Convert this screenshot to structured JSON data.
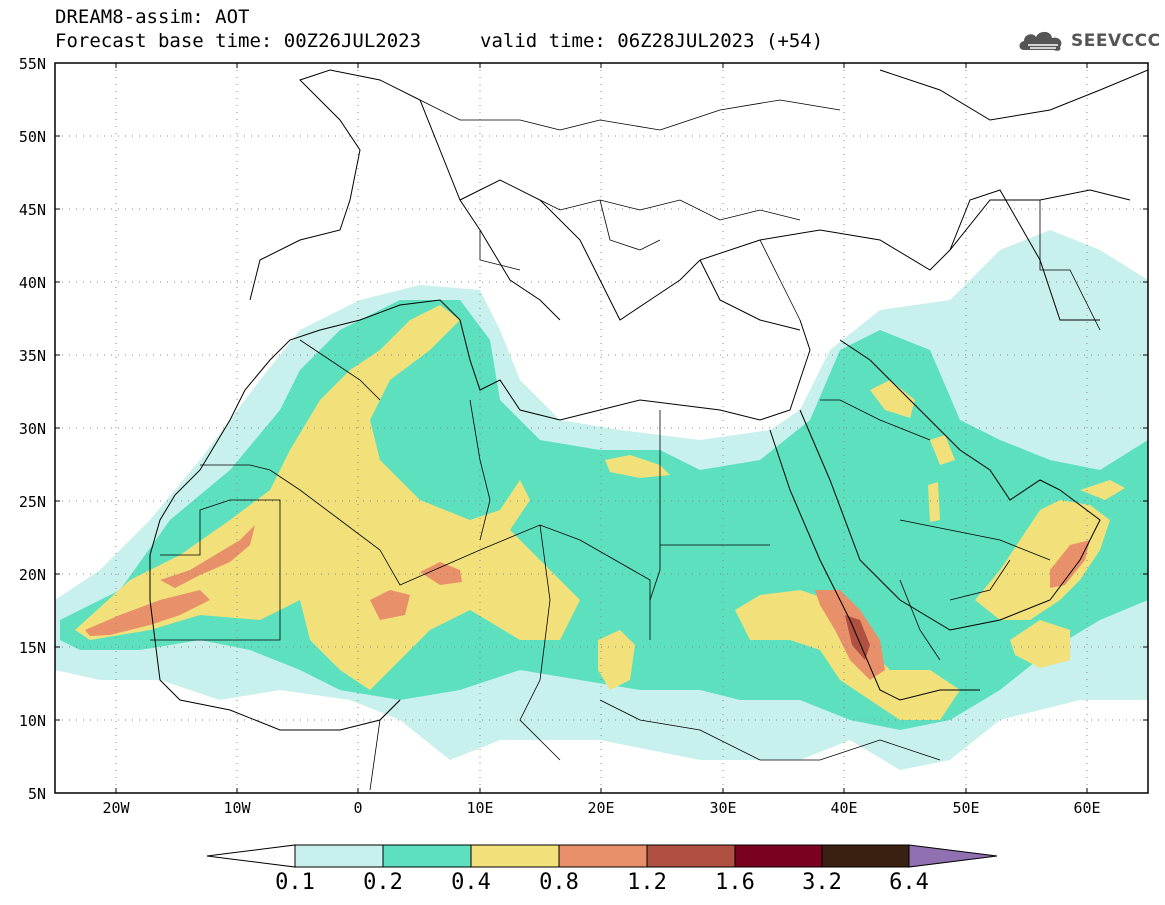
{
  "header": {
    "title_line1": "DREAM8-assim: AOT",
    "title_line2_base": "Forecast base time: 00Z26JUL2023",
    "title_line2_valid": "valid time: 06Z28JUL2023 (+54)",
    "logo_text": "SEEVCCC",
    "logo_icon": "cloud-icon"
  },
  "map": {
    "lon_range": [
      -25,
      65
    ],
    "lat_range": [
      5,
      55
    ],
    "grid": true,
    "lat_labels": [
      "55N",
      "50N",
      "45N",
      "40N",
      "35N",
      "30N",
      "25N",
      "20N",
      "15N",
      "10N",
      "5N"
    ],
    "lon_labels": [
      "20W",
      "10W",
      "0",
      "10E",
      "20E",
      "30E",
      "40E",
      "50E",
      "60E"
    ],
    "field_colors": {
      "c1": "#c8f0ec",
      "c2": "#5ce0be",
      "c3": "#f2e07a",
      "c4": "#e8906a",
      "c5": "#b05040",
      "c6": "#7a0020",
      "c7": "#3a2010"
    }
  },
  "colorbar": {
    "labels": [
      "0.1",
      "0.2",
      "0.4",
      "0.8",
      "1.2",
      "1.6",
      "3.2",
      "6.4"
    ],
    "colors": [
      "#ffffff",
      "#c8f0ec",
      "#5ce0be",
      "#f2e07a",
      "#e8906a",
      "#b05040",
      "#7a0020",
      "#3a2010",
      "#9070b0"
    ]
  }
}
